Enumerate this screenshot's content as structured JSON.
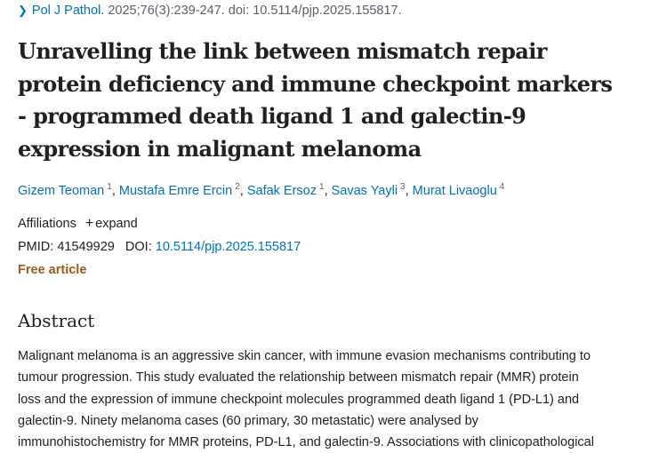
{
  "citation": {
    "journal": "Pol J Pathol.",
    "details": "2025;76(3):239-247. doi: 10.5114/pjp.2025.155817."
  },
  "title_lines": [
    "Unravelling the link between mismatch repair",
    "protein deficiency and immune checkpoint markers",
    "- programmed death ligand 1 and galectin-9",
    "expression in malignant melanoma"
  ],
  "authors": [
    {
      "name": "Gizem Teoman",
      "aff": "1"
    },
    {
      "name": "Mustafa Emre Ercin",
      "aff": "2"
    },
    {
      "name": "Safak Ersoz",
      "aff": "1"
    },
    {
      "name": "Savas Yayli",
      "aff": "3"
    },
    {
      "name": "Murat Livaoglu",
      "aff": "4"
    }
  ],
  "affiliations": {
    "label": "Affiliations",
    "expand": "expand"
  },
  "ids": {
    "pmid_label": "PMID:",
    "pmid": "41549929",
    "doi_label": "DOI:",
    "doi": "10.5114/pjp.2025.155817"
  },
  "free_article": "Free article",
  "abstract": {
    "heading": "Abstract",
    "lines": [
      "Malignant melanoma is an aggressive skin cancer, with immune evasion mechanisms contributing to",
      "tumour progression. This study evaluated the relationship between mismatch repair (MMR) protein",
      "loss and the expression of immune checkpoint molecules programmed death ligand 1 (PD-L1) and",
      "galectin-9. Ninety melanoma cases (60 primary, 30 metastatic) were analysed by",
      "immunohistochemistry for MMR proteins, PD-L1, and galectin-9. Associations with clinicopathological"
    ]
  },
  "colors": {
    "link": "#0071bc",
    "free": "#9c5a1c",
    "text": "#212121"
  }
}
